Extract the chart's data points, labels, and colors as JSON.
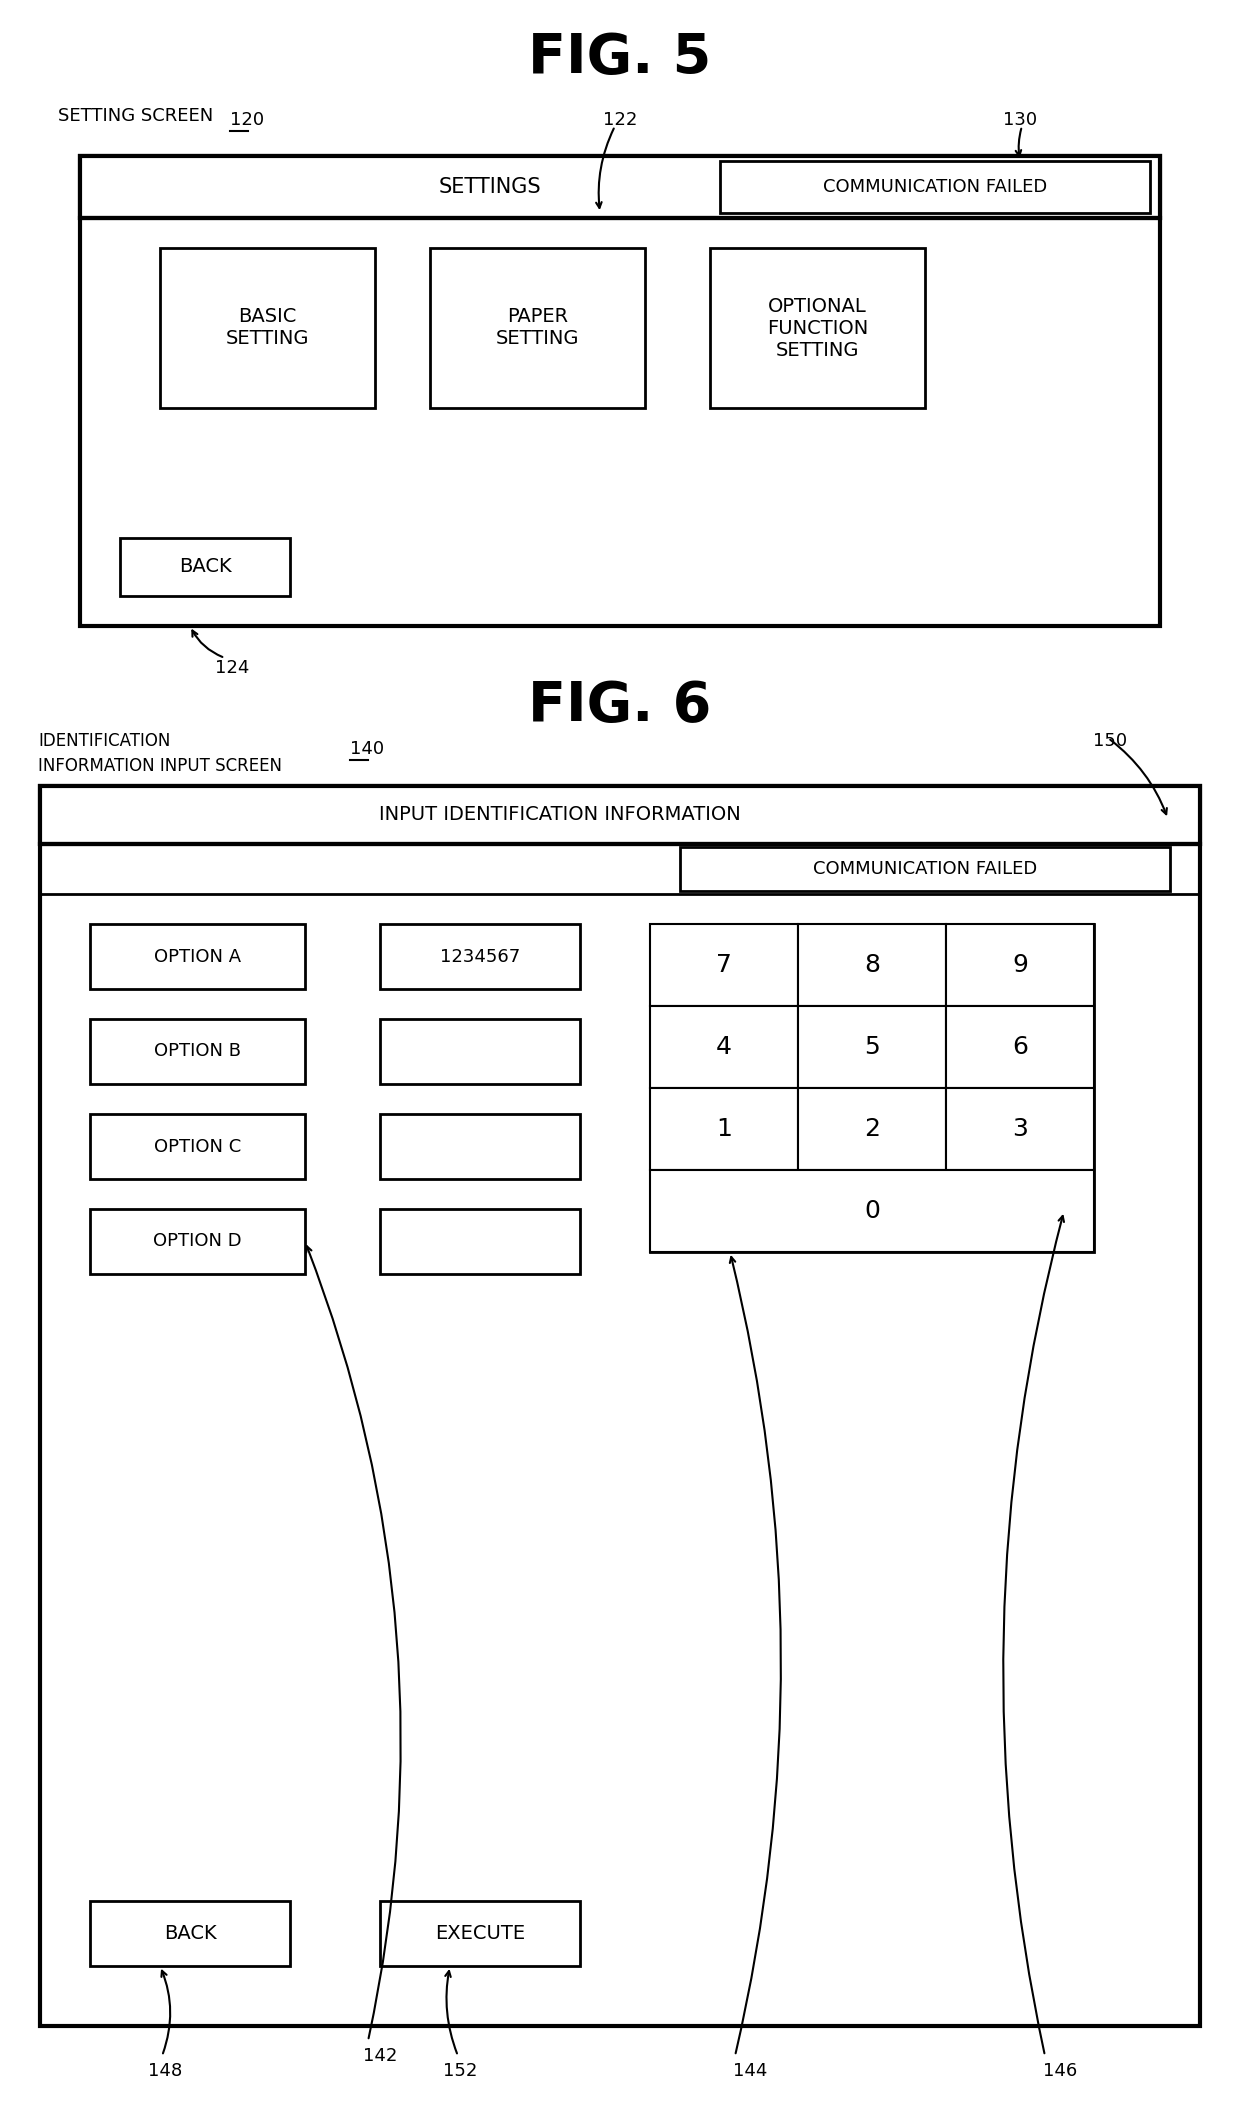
{
  "fig5_title": "FIG. 5",
  "fig6_title": "FIG. 6",
  "bg_color": "#ffffff",
  "text_color": "#000000",
  "fig5": {
    "label_screen": "SETTING SCREEN",
    "ref_120": "120",
    "ref_122": "122",
    "ref_130": "130",
    "ref_124": "124",
    "title_bar_text": "SETTINGS",
    "comm_failed_text": "COMMUNICATION FAILED",
    "buttons": [
      {
        "text": "BASIC\nSETTING"
      },
      {
        "text": "PAPER\nSETTING"
      },
      {
        "text": "OPTIONAL\nFUNCTION\nSETTING"
      }
    ],
    "back_text": "BACK"
  },
  "fig6": {
    "label_id1": "IDENTIFICATION",
    "label_id2": "INFORMATION INPUT SCREEN",
    "ref_140": "140",
    "ref_150": "150",
    "ref_142": "142",
    "ref_144": "144",
    "ref_146": "146",
    "ref_148": "148",
    "ref_152": "152",
    "header_text": "INPUT IDENTIFICATION INFORMATION",
    "comm_failed_text": "COMMUNICATION FAILED",
    "options": [
      "OPTION A",
      "OPTION B",
      "OPTION C",
      "OPTION D"
    ],
    "option_a_value": "1234567",
    "numpad_rows": [
      [
        "7",
        "8",
        "9"
      ],
      [
        "4",
        "5",
        "6"
      ],
      [
        "1",
        "2",
        "3"
      ]
    ],
    "numpad_zero": "0",
    "back_text": "BACK",
    "execute_text": "EXECUTE"
  }
}
